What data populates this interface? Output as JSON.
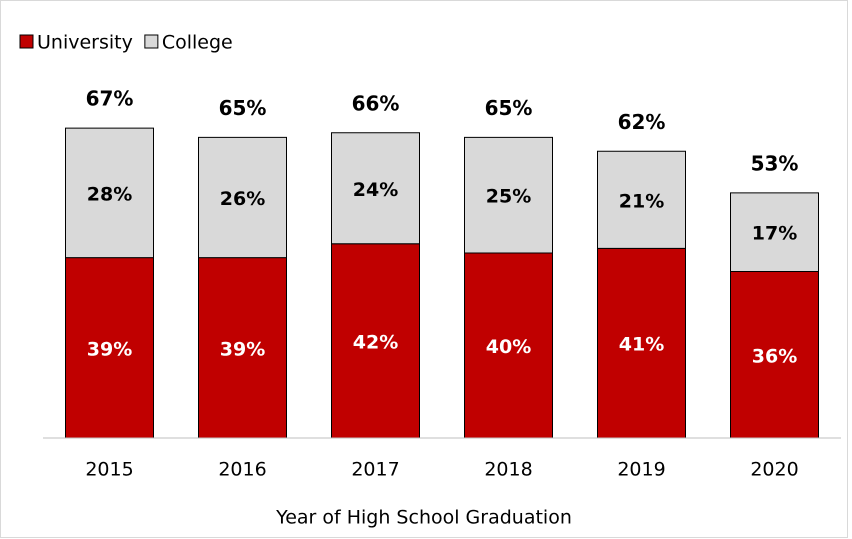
{
  "chart_data": {
    "type": "stacked_bar",
    "x_label": "Year of High School Graduation",
    "categories": [
      "2015",
      "2016",
      "2017",
      "2018",
      "2019",
      "2020"
    ],
    "series": [
      {
        "name": "University",
        "color": "#c00000",
        "values": [
          39,
          39,
          42,
          40,
          41,
          36
        ],
        "value_labels": [
          "39%",
          "39%",
          "42%",
          "40%",
          "41%",
          "36%"
        ]
      },
      {
        "name": "College",
        "color": "#d9d9d9",
        "values": [
          28,
          26,
          24,
          25,
          21,
          17
        ],
        "value_labels": [
          "28%",
          "26%",
          "24%",
          "25%",
          "21%",
          "17%"
        ]
      }
    ],
    "totals": [
      67,
      65,
      66,
      65,
      62,
      53
    ],
    "total_labels": [
      "67%",
      "65%",
      "66%",
      "65%",
      "62%",
      "53%"
    ],
    "ylim": [
      0,
      80
    ],
    "legend": "top-left"
  }
}
